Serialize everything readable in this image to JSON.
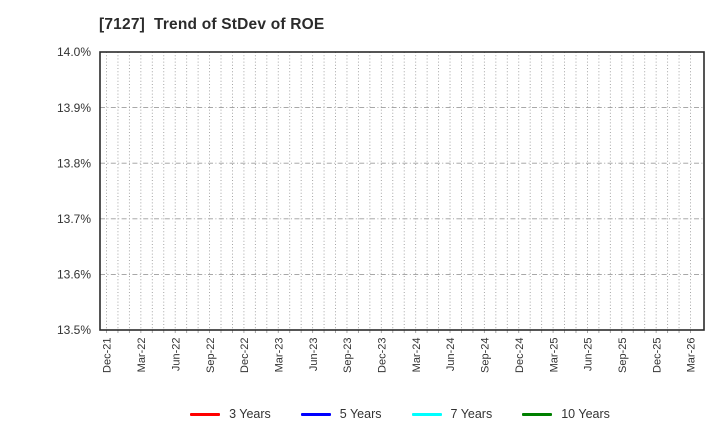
{
  "chart_data": {
    "type": "line",
    "title": "[7127]  Trend of StDev of ROE",
    "xlabel": "",
    "ylabel": "",
    "ylim": [
      13.5,
      14.0
    ],
    "y_tick_values": [
      13.5,
      13.6,
      13.7,
      13.8,
      13.9,
      14.0
    ],
    "y_tick_labels": [
      "13.5%",
      "13.6%",
      "13.7%",
      "13.8%",
      "13.9%",
      "14.0%"
    ],
    "x_labels": [
      "Dec-21",
      "Mar-22",
      "Jun-22",
      "Sep-22",
      "Dec-22",
      "Mar-23",
      "Jun-23",
      "Sep-23",
      "Dec-23",
      "Mar-24",
      "Jun-24",
      "Sep-24",
      "Dec-24",
      "Mar-25",
      "Jun-25",
      "Sep-25",
      "Dec-25",
      "Mar-26"
    ],
    "months_per_label": 3,
    "x_label_rotation_deg": -90,
    "grid": true,
    "minor_vertical_gridlines": "monthly",
    "legend_position": "bottom",
    "data_visible": false,
    "series": [
      {
        "name": "3 Years",
        "color": "#ff0000",
        "values": []
      },
      {
        "name": "5 Years",
        "color": "#0000ff",
        "values": []
      },
      {
        "name": "7 Years",
        "color": "#00ffff",
        "values": []
      },
      {
        "name": "10 Years",
        "color": "#008000",
        "values": []
      }
    ],
    "colors": {
      "grid": "#9c9c9c",
      "axis": "#2b2b2b",
      "text": "#333333",
      "background": "#ffffff"
    }
  }
}
